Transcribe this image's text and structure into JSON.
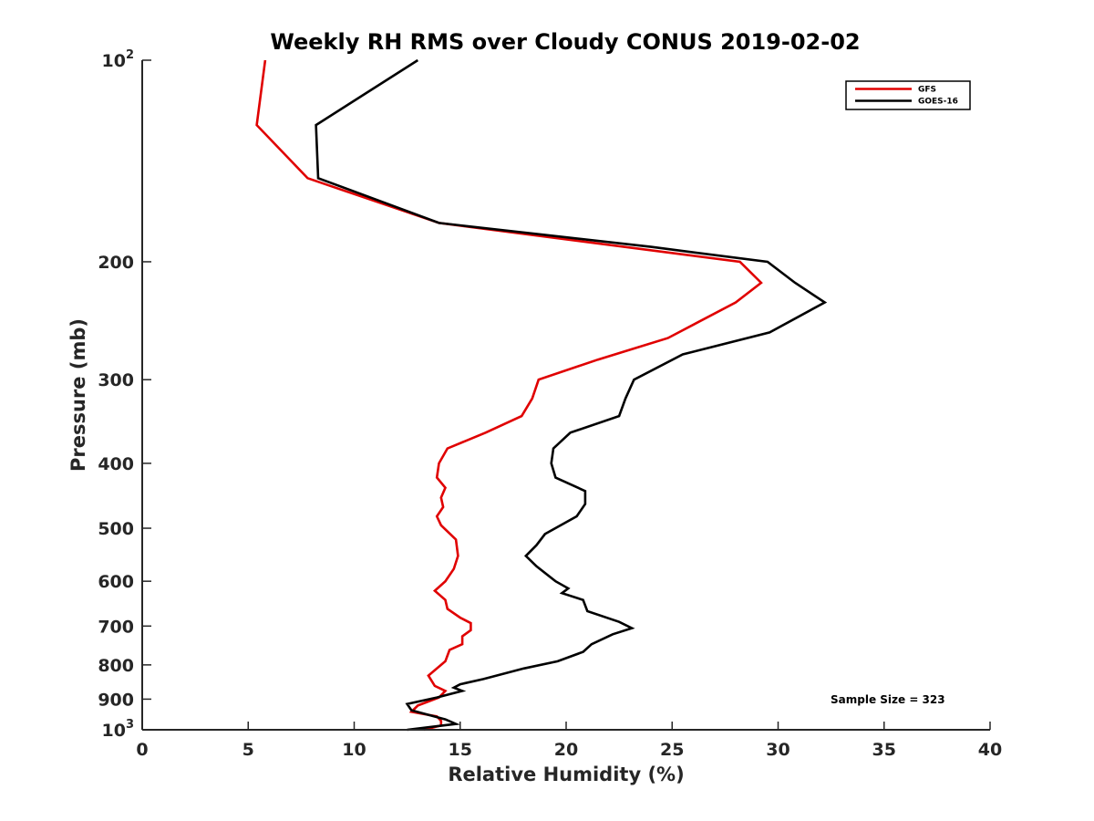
{
  "chart_data": {
    "type": "line",
    "title": "Weekly RH RMS over Cloudy CONUS 2019-02-02",
    "xlabel": "Relative Humidity (%)",
    "ylabel": "Pressure (mb)",
    "xlim": [
      0,
      40
    ],
    "ylim": [
      100,
      1000
    ],
    "y_scale": "log",
    "y_reversed": true,
    "x_ticks": [
      "0",
      "5",
      "10",
      "15",
      "20",
      "25",
      "30",
      "35",
      "40"
    ],
    "y_ticks": [
      {
        "value": 100,
        "base": "10",
        "exp": "2"
      },
      {
        "value": 200,
        "label": "200"
      },
      {
        "value": 300,
        "label": "300"
      },
      {
        "value": 400,
        "label": "400"
      },
      {
        "value": 500,
        "label": "500"
      },
      {
        "value": 600,
        "label": "600"
      },
      {
        "value": 700,
        "label": "700"
      },
      {
        "value": 800,
        "label": "800"
      },
      {
        "value": 900,
        "label": "900"
      },
      {
        "value": 1000,
        "base": "10",
        "exp": "3"
      }
    ],
    "legend_position": "top-right",
    "grid": false,
    "annotation": "Sample Size = 323",
    "series": [
      {
        "name": "GFS",
        "color": "#e00000",
        "points": [
          [
            5.8,
            100
          ],
          [
            5.4,
            125
          ],
          [
            7.8,
            150
          ],
          [
            14.0,
            175
          ],
          [
            28.2,
            200
          ],
          [
            29.2,
            215
          ],
          [
            28.0,
            230
          ],
          [
            24.8,
            260
          ],
          [
            21.5,
            280
          ],
          [
            18.7,
            300
          ],
          [
            18.4,
            320
          ],
          [
            17.9,
            340
          ],
          [
            16.2,
            360
          ],
          [
            14.4,
            380
          ],
          [
            14.0,
            400
          ],
          [
            13.9,
            420
          ],
          [
            14.3,
            435
          ],
          [
            14.1,
            450
          ],
          [
            14.2,
            465
          ],
          [
            13.9,
            480
          ],
          [
            14.1,
            495
          ],
          [
            14.8,
            520
          ],
          [
            14.9,
            550
          ],
          [
            14.7,
            575
          ],
          [
            14.3,
            600
          ],
          [
            13.8,
            620
          ],
          [
            14.3,
            640
          ],
          [
            14.4,
            660
          ],
          [
            15.0,
            680
          ],
          [
            15.5,
            693
          ],
          [
            15.5,
            710
          ],
          [
            15.1,
            725
          ],
          [
            15.1,
            745
          ],
          [
            14.5,
            760
          ],
          [
            14.3,
            790
          ],
          [
            13.5,
            830
          ],
          [
            13.8,
            860
          ],
          [
            14.3,
            875
          ],
          [
            14.0,
            895
          ],
          [
            13.0,
            920
          ],
          [
            12.7,
            940
          ],
          [
            13.9,
            955
          ],
          [
            14.1,
            970
          ],
          [
            14.1,
            985
          ],
          [
            13.3,
            1000
          ]
        ]
      },
      {
        "name": "GOES-16",
        "color": "#000000",
        "points": [
          [
            13.0,
            100
          ],
          [
            8.2,
            125
          ],
          [
            8.3,
            150
          ],
          [
            14.0,
            175
          ],
          [
            24.0,
            190
          ],
          [
            29.5,
            200
          ],
          [
            30.8,
            215
          ],
          [
            32.2,
            230
          ],
          [
            29.6,
            255
          ],
          [
            25.5,
            275
          ],
          [
            23.2,
            300
          ],
          [
            22.8,
            320
          ],
          [
            22.5,
            340
          ],
          [
            20.2,
            360
          ],
          [
            19.4,
            380
          ],
          [
            19.3,
            400
          ],
          [
            19.5,
            420
          ],
          [
            20.9,
            440
          ],
          [
            20.9,
            460
          ],
          [
            20.5,
            480
          ],
          [
            19.0,
            510
          ],
          [
            18.6,
            530
          ],
          [
            18.1,
            550
          ],
          [
            18.6,
            570
          ],
          [
            19.5,
            600
          ],
          [
            20.1,
            615
          ],
          [
            19.8,
            625
          ],
          [
            20.8,
            640
          ],
          [
            21.0,
            665
          ],
          [
            22.5,
            690
          ],
          [
            23.1,
            705
          ],
          [
            22.2,
            720
          ],
          [
            21.2,
            745
          ],
          [
            20.8,
            765
          ],
          [
            19.6,
            790
          ],
          [
            18.0,
            810
          ],
          [
            16.1,
            840
          ],
          [
            15.0,
            855
          ],
          [
            14.7,
            865
          ],
          [
            15.1,
            875
          ],
          [
            13.9,
            895
          ],
          [
            12.5,
            915
          ],
          [
            12.7,
            935
          ],
          [
            13.5,
            950
          ],
          [
            14.3,
            965
          ],
          [
            14.8,
            980
          ],
          [
            12.5,
            1000
          ]
        ]
      }
    ]
  }
}
